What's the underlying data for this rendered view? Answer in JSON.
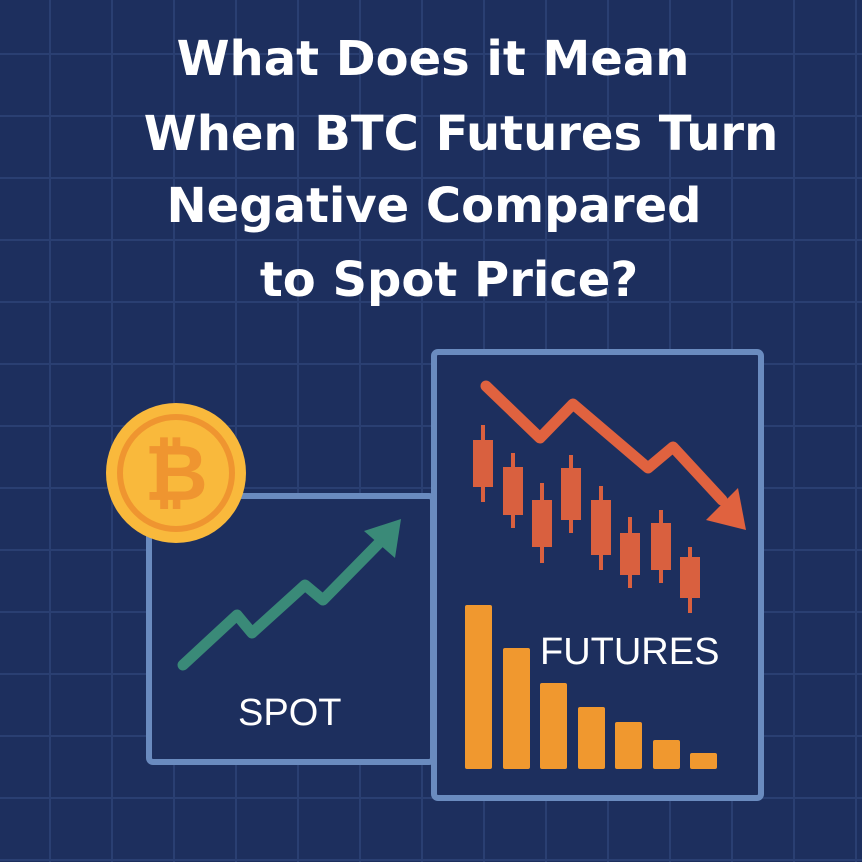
{
  "title": {
    "lines": [
      "What Does it Mean",
      "When BTC Futures Turn",
      "Negative Compared",
      "to Spot Price?"
    ]
  },
  "panels": {
    "spot_label": "SPOT",
    "futures_label": "FUTURES"
  },
  "icons": {
    "coin": "bitcoin-icon",
    "spot_trend": "trend-up-arrow-icon",
    "futures_trend": "trend-down-arrow-icon"
  },
  "colors": {
    "background": "#1d2f5e",
    "grid": "#2a3f72",
    "panel_border": "#6a8bbf",
    "spot_line": "#3a8a78",
    "futures_line": "#e0623f",
    "candles": "#d9603f",
    "bars": "#f0982f",
    "coin_fill": "#f9b93c",
    "coin_ring": "#ef9530",
    "text": "#ffffff"
  }
}
